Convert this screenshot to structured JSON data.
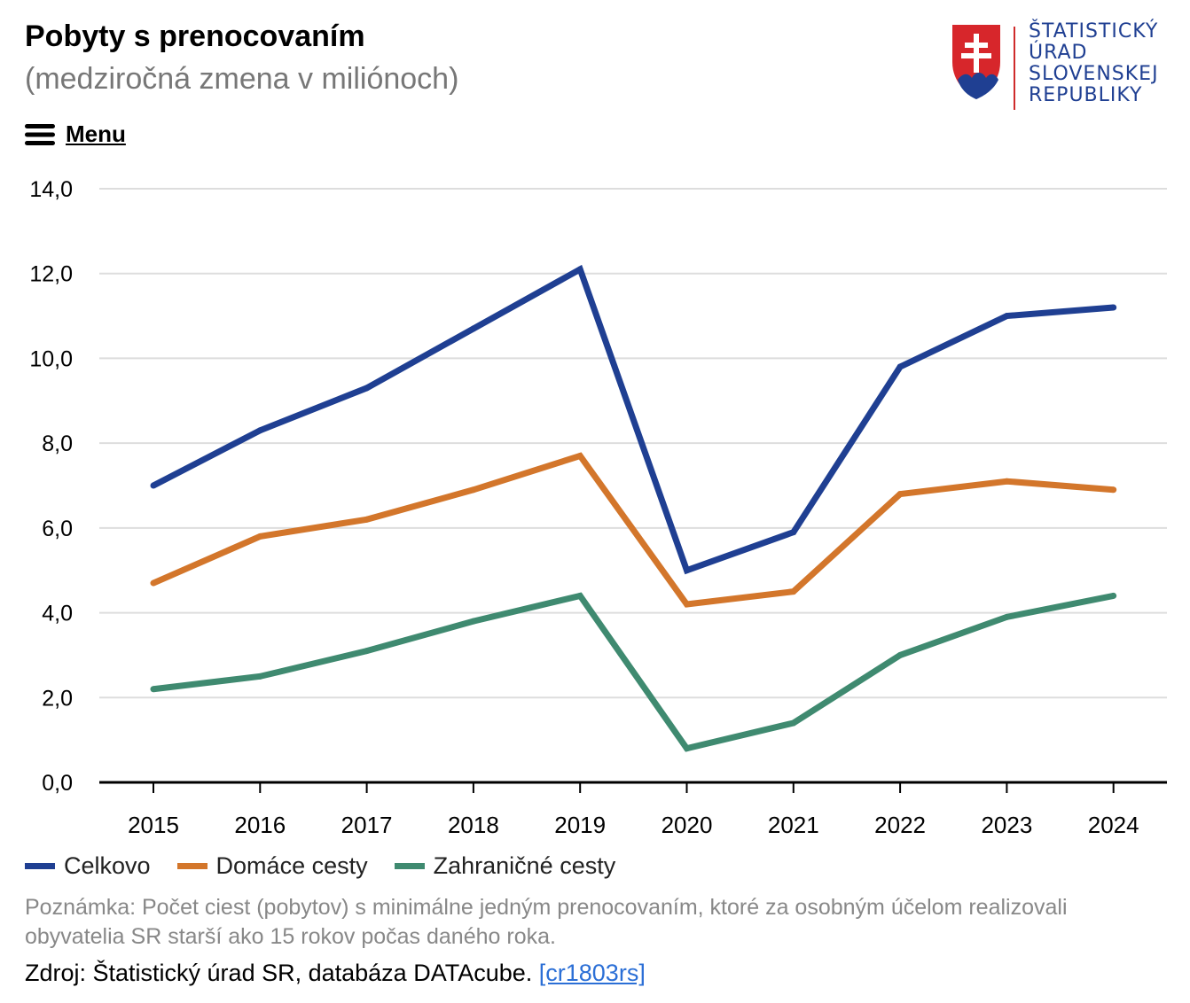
{
  "title": "Pobyty s prenocovaním",
  "subtitle": "(medziročná zmena v miliónoch)",
  "logo": {
    "lines": [
      "ŠTATISTICKÝ",
      "ÚRAD",
      "SLOVENSKEJ",
      "REPUBLIKY"
    ],
    "colors": {
      "red": "#d7262b",
      "blue": "#1f3f92",
      "white": "#ffffff"
    }
  },
  "menu": {
    "label": "Menu",
    "icon": "hamburger-icon"
  },
  "chart_data": {
    "type": "line",
    "title": "Pobyty s prenocovaním",
    "subtitle": "(medziročná zmena v miliónoch)",
    "xlabel": "",
    "ylabel": "",
    "categories": [
      "2015",
      "2016",
      "2017",
      "2018",
      "2019",
      "2020",
      "2021",
      "2022",
      "2023",
      "2024"
    ],
    "ylim": [
      0,
      14
    ],
    "yticks": [
      "0,0",
      "2,0",
      "4,0",
      "6,0",
      "8,0",
      "10,0",
      "12,0",
      "14,0"
    ],
    "grid": true,
    "legend_position": "bottom-left",
    "series": [
      {
        "name": "Celkovo",
        "color": "#1f3f92",
        "values": [
          7.0,
          8.3,
          9.3,
          10.7,
          12.1,
          5.0,
          5.9,
          9.8,
          11.0,
          11.2
        ]
      },
      {
        "name": "Domáce cesty",
        "color": "#d3762b",
        "values": [
          4.7,
          5.8,
          6.2,
          6.9,
          7.7,
          4.2,
          4.5,
          6.8,
          7.1,
          6.9
        ]
      },
      {
        "name": "Zahraničné cesty",
        "color": "#3f8a70",
        "values": [
          2.2,
          2.5,
          3.1,
          3.8,
          4.4,
          0.8,
          1.4,
          3.0,
          3.9,
          4.4
        ]
      }
    ]
  },
  "note": "Poznámka: Počet ciest (pobytov) s minimálne jedným prenocovaním, ktoré za osobným účelom realizovali obyvatelia SR starší ako 15 rokov počas daného roka.",
  "source": {
    "prefix": "Zdroj: Štatistický úrad SR, databáza DATAcube.",
    "link": "[cr1803rs]"
  }
}
